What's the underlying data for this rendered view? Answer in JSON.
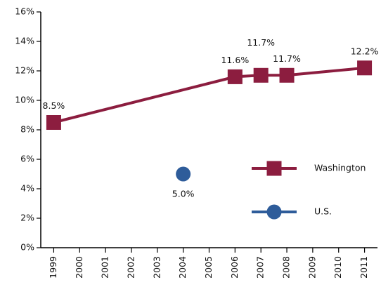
{
  "chart_data": {
    "type": "line",
    "series": [
      {
        "name": "Washington",
        "color": "#8c1d3f",
        "marker": "square",
        "x": [
          1999,
          2006,
          2007,
          2008,
          2011
        ],
        "values": [
          8.5,
          11.6,
          11.7,
          11.7,
          12.2
        ],
        "value_labels": [
          "8.5%",
          "11.6%",
          "11.7%",
          "11.7%",
          "12.2%"
        ]
      },
      {
        "name": "U.S.",
        "color": "#2e5c9a",
        "marker": "circle",
        "x": [
          2004
        ],
        "values": [
          5.0
        ],
        "value_labels": [
          "5.0%"
        ]
      }
    ],
    "xlim": [
      1998.5,
      2011.5
    ],
    "xticks": [
      1999,
      2000,
      2001,
      2002,
      2003,
      2004,
      2005,
      2006,
      2007,
      2008,
      2009,
      2010,
      2011
    ],
    "ylim": [
      0,
      16
    ],
    "yticks": [
      {
        "value": 0,
        "label": "0%"
      },
      {
        "value": 2,
        "label": "2%"
      },
      {
        "value": 4,
        "label": "4%"
      },
      {
        "value": 6,
        "label": "6%"
      },
      {
        "value": 8,
        "label": "8%"
      },
      {
        "value": 10,
        "label": "10%"
      },
      {
        "value": 12,
        "label": "12%"
      },
      {
        "value": 14,
        "label": "14%"
      },
      {
        "value": 16,
        "label": "16%"
      }
    ],
    "legend": "right"
  }
}
